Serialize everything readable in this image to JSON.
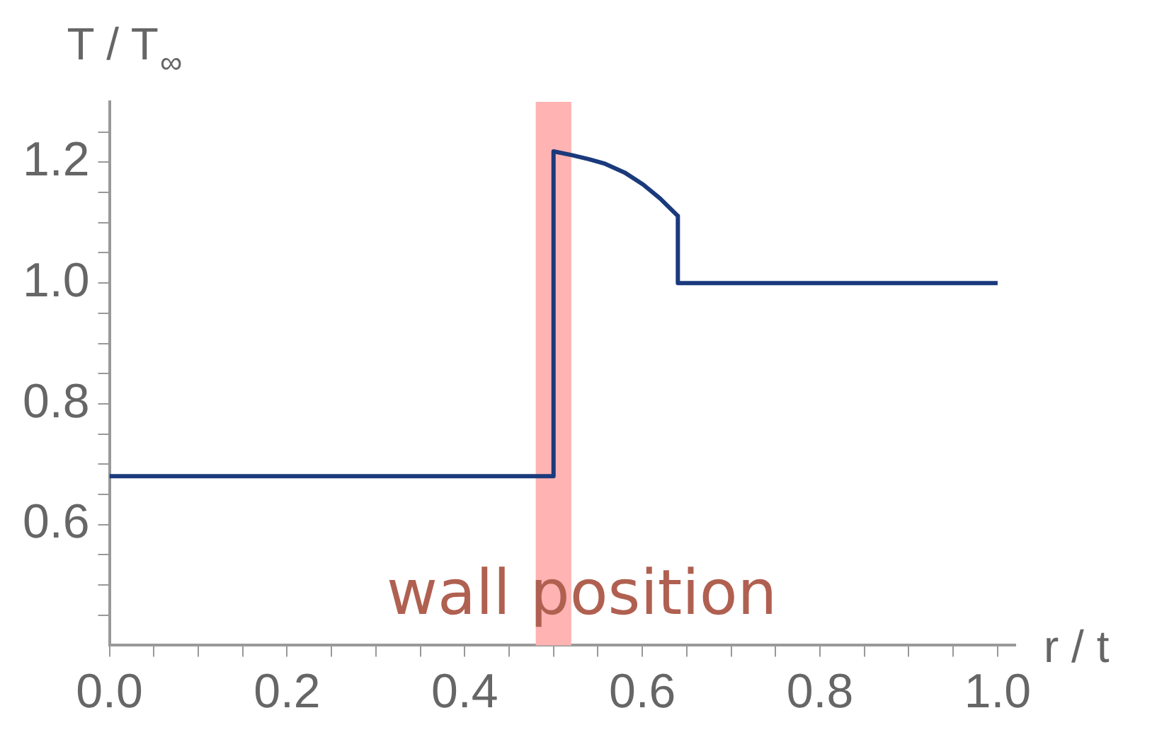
{
  "chart_data": {
    "type": "line",
    "xlabel": "r / t",
    "ylabel": "T / T$_{∞}$",
    "series": [
      {
        "color": "#1b3a7c",
        "x": [
          0,
          0.5,
          0.5,
          0.52,
          0.54,
          0.557,
          0.58,
          0.601,
          0.62,
          0.64,
          0.64,
          1.0
        ],
        "values": [
          0.68,
          0.68,
          1.218,
          1.212,
          1.205,
          1.198,
          1.183,
          1.163,
          1.14,
          1.111,
          1.0,
          1.0
        ]
      }
    ],
    "xlim": [
      0,
      1.02
    ],
    "ylim": [
      0.4,
      1.3
    ],
    "xticks": [
      {
        "value": 0,
        "label": "0.0"
      },
      {
        "value": 0.05,
        "label": null
      },
      {
        "value": 0.1,
        "label": null
      },
      {
        "value": 0.15,
        "label": null
      },
      {
        "value": 0.2,
        "label": "0.2"
      },
      {
        "value": 0.25,
        "label": null
      },
      {
        "value": 0.3,
        "label": null
      },
      {
        "value": 0.35,
        "label": null
      },
      {
        "value": 0.4,
        "label": "0.4"
      },
      {
        "value": 0.45,
        "label": null
      },
      {
        "value": 0.5,
        "label": null
      },
      {
        "value": 0.55,
        "label": null
      },
      {
        "value": 0.6,
        "label": "0.6"
      },
      {
        "value": 0.65,
        "label": null
      },
      {
        "value": 0.7,
        "label": null
      },
      {
        "value": 0.75,
        "label": null
      },
      {
        "value": 0.8,
        "label": "0.8"
      },
      {
        "value": 0.85,
        "label": null
      },
      {
        "value": 0.9,
        "label": null
      },
      {
        "value": 0.95,
        "label": null
      },
      {
        "value": 1,
        "label": "1.0"
      }
    ],
    "yticks": [
      {
        "value": 0.45,
        "label": null
      },
      {
        "value": 0.5,
        "label": null
      },
      {
        "value": 0.55,
        "label": null
      },
      {
        "value": 0.6,
        "label": "0.6"
      },
      {
        "value": 0.65,
        "label": null
      },
      {
        "value": 0.7,
        "label": null
      },
      {
        "value": 0.75,
        "label": null
      },
      {
        "value": 0.8,
        "label": "0.8"
      },
      {
        "value": 0.85,
        "label": null
      },
      {
        "value": 0.9,
        "label": null
      },
      {
        "value": 0.95,
        "label": null
      },
      {
        "value": 1,
        "label": "1.0"
      },
      {
        "value": 1.05,
        "label": null
      },
      {
        "value": 1.1,
        "label": null
      },
      {
        "value": 1.15,
        "label": null
      },
      {
        "value": 1.2,
        "label": "1.2"
      },
      {
        "value": 1.25,
        "label": null
      }
    ],
    "bands": [
      {
        "axis": "x",
        "from": 0.48,
        "to": 0.52,
        "label": "wall position",
        "color": "#ffb3b3"
      }
    ],
    "grid": false,
    "legend": false,
    "line_style": "solid",
    "marker": "none"
  }
}
